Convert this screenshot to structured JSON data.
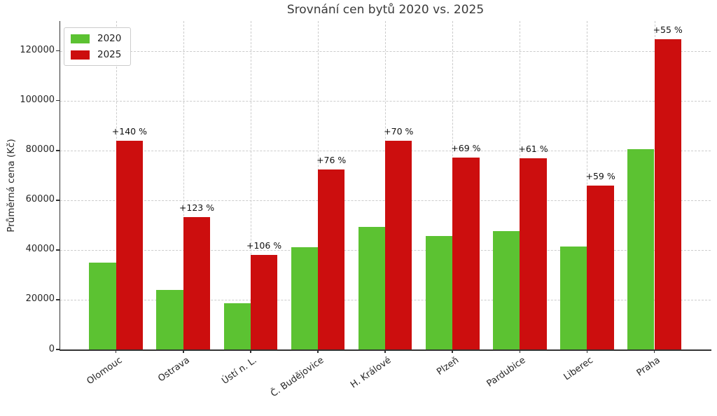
{
  "chart_data": {
    "type": "bar",
    "title": "Srovnání cen bytů 2020 vs. 2025",
    "xlabel": "",
    "ylabel": "Průměrná cena (Kč)",
    "categories": [
      "Olomouc",
      "Ostrava",
      "Ústí n. L.",
      "Č. Budějovice",
      "H. Králové",
      "Plzeň",
      "Pardubice",
      "Liberec",
      "Praha"
    ],
    "series": [
      {
        "name": "2020",
        "color": "#5cc232",
        "values": [
          35000,
          23800,
          18500,
          41000,
          49300,
          45600,
          47700,
          41500,
          80500
        ]
      },
      {
        "name": "2025",
        "color": "#cc0e0e",
        "values": [
          84000,
          53100,
          38100,
          72200,
          83800,
          77000,
          76800,
          66000,
          124800
        ]
      }
    ],
    "annotations": [
      "+140 %",
      "+123 %",
      "+106 %",
      "+76 %",
      "+70 %",
      "+69 %",
      "+61 %",
      "+59 %",
      "+55 %"
    ],
    "y_ticks": [
      0,
      20000,
      40000,
      60000,
      80000,
      100000,
      120000
    ],
    "y_tick_labels": [
      "0",
      "20000",
      "40000",
      "60000",
      "80000",
      "100000",
      "120000"
    ],
    "ylim": [
      0,
      132000
    ],
    "grid": "dashed, horizontal and vertical",
    "legend_position": "upper left"
  },
  "colors": {
    "grid": "#cccccc",
    "axis": "#333333",
    "text": "#262626",
    "title": "#3a3a3a",
    "background": "#ffffff"
  }
}
